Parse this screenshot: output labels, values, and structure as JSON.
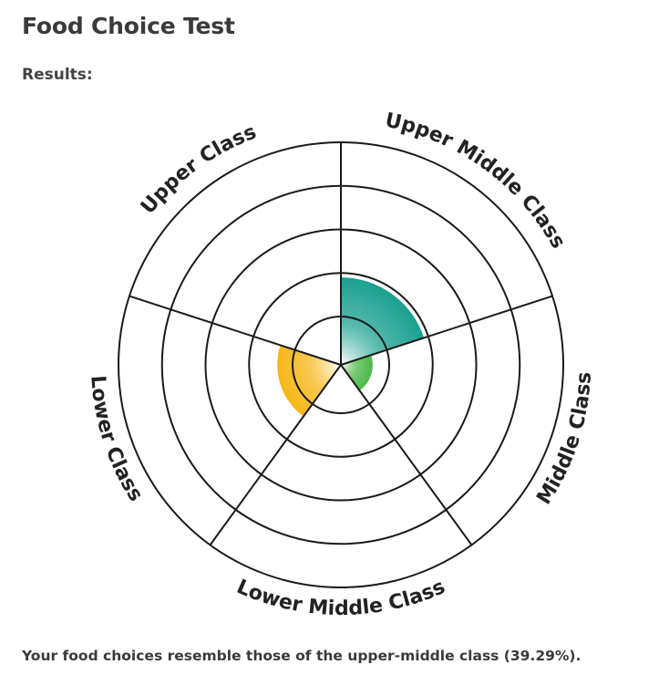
{
  "header": {
    "title": "Food Choice Test",
    "results_label": "Results:"
  },
  "summary": {
    "text": "Your food choices resemble those of the upper-middle class (39.29%)."
  },
  "chart_data": {
    "type": "polar-area",
    "rings": 5,
    "scale_max": 100,
    "categories": [
      "Upper Middle Class",
      "Middle Class",
      "Lower Middle Class",
      "Lower Class",
      "Upper Class"
    ],
    "values": [
      39.29,
      14.3,
      0,
      28.6,
      0
    ],
    "colors": [
      "#1aa08f",
      "#4cb848",
      "#7fc64a",
      "#f5b716",
      "#cccccc"
    ],
    "grid": true,
    "legend": "none"
  }
}
